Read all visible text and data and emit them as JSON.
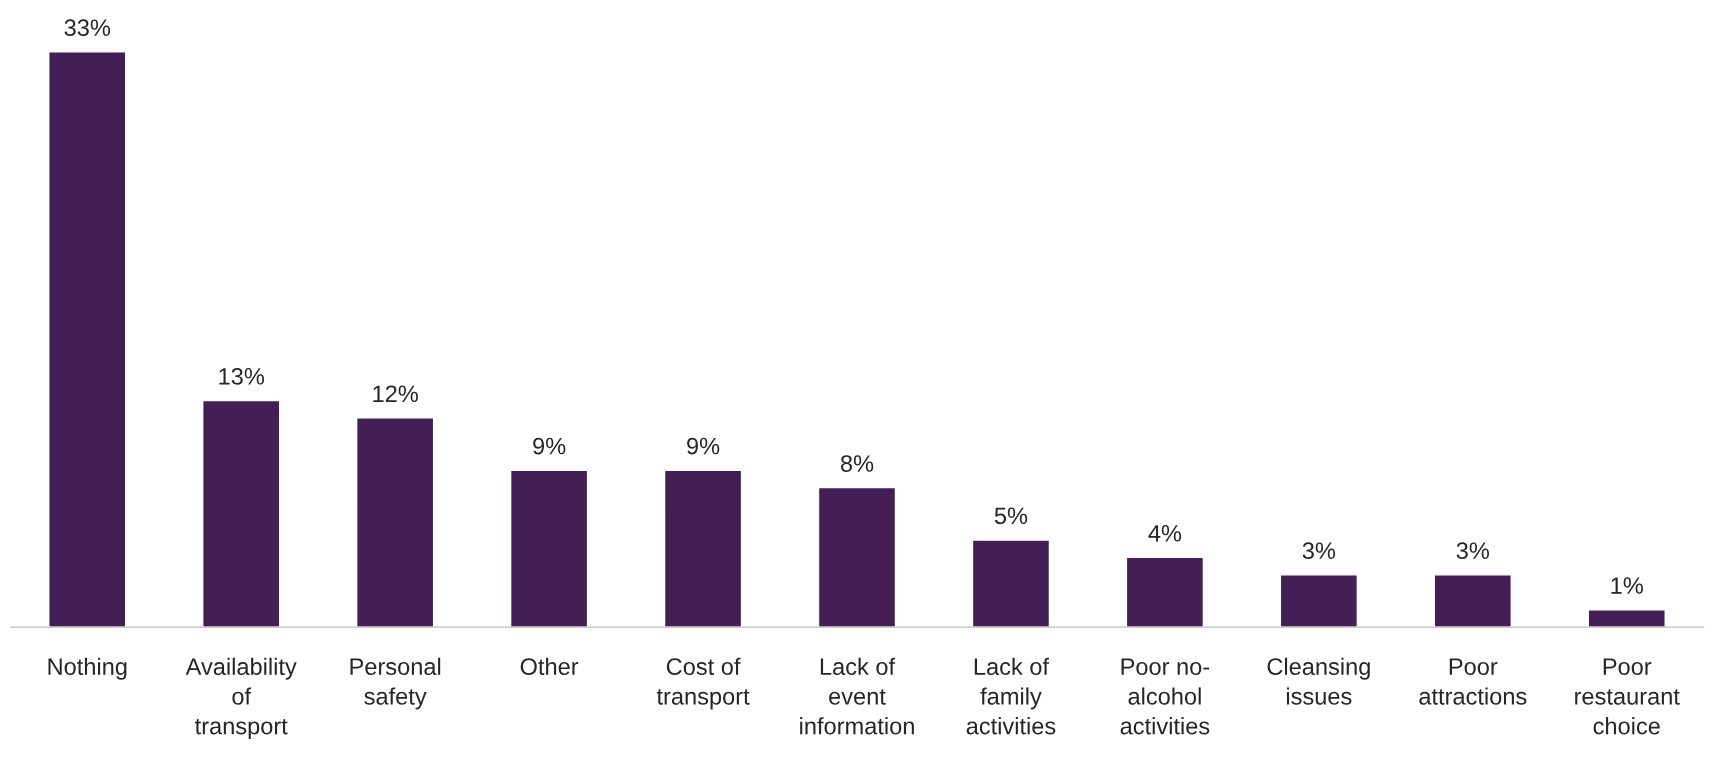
{
  "chart_data": {
    "type": "bar",
    "categories": [
      "Nothing",
      "Availability\nof\ntransport",
      "Personal\nsafety",
      "Other",
      "Cost of\ntransport",
      "Lack of\nevent\ninformation",
      "Lack of\nfamily\nactivities",
      "Poor no-\nalcohol\nactivities",
      "Cleansing\nissues",
      "Poor\nattractions",
      "Poor\nrestaurant\nchoice"
    ],
    "values": [
      33,
      13,
      12,
      9,
      9,
      8,
      5,
      4,
      3,
      3,
      1
    ],
    "value_labels": [
      "33%",
      "13%",
      "12%",
      "9%",
      "9%",
      "8%",
      "5%",
      "4%",
      "3%",
      "3%",
      "1%"
    ],
    "color": "#441f56",
    "ylim": [
      0,
      33
    ],
    "tick_labels": "x",
    "grid": false,
    "legend": false
  }
}
